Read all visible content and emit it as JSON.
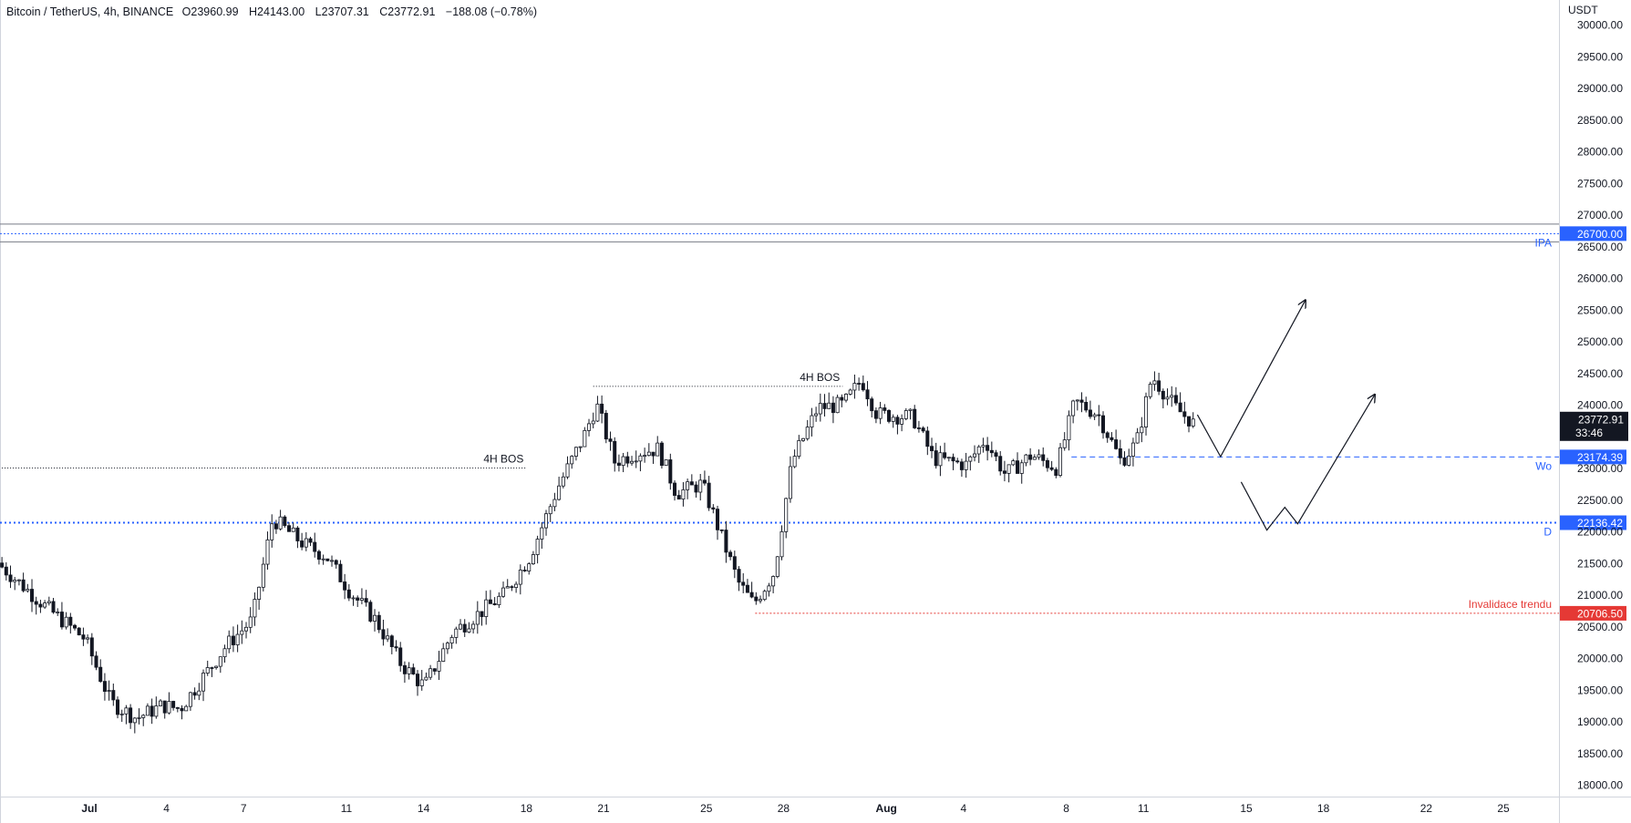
{
  "header": {
    "symbol": "Bitcoin / TetherUS, 4h, BINANCE",
    "open": "O23960.99",
    "high": "H24143.00",
    "low": "L23707.31",
    "close": "C23772.91",
    "change": "−188.08 (−0.78%)"
  },
  "price_axis": {
    "unit": "USDT",
    "ticks": [
      "30000.00",
      "29500.00",
      "29000.00",
      "28500.00",
      "28000.00",
      "27500.00",
      "27000.00",
      "26500.00",
      "26000.00",
      "25500.00",
      "25000.00",
      "24500.00",
      "24000.00",
      "23500.00",
      "23000.00",
      "22500.00",
      "22000.00",
      "21500.00",
      "21000.00",
      "20500.00",
      "20000.00",
      "19500.00",
      "19000.00",
      "18500.00",
      "18000.00"
    ],
    "current_price": "23772.91",
    "countdown": "33:46"
  },
  "time_axis": {
    "ticks": [
      {
        "label": "Jul",
        "bold": true,
        "day": 0
      },
      {
        "label": "4",
        "bold": false,
        "day": 3
      },
      {
        "label": "7",
        "bold": false,
        "day": 6
      },
      {
        "label": "11",
        "bold": false,
        "day": 10
      },
      {
        "label": "14",
        "bold": false,
        "day": 13
      },
      {
        "label": "18",
        "bold": false,
        "day": 17
      },
      {
        "label": "21",
        "bold": false,
        "day": 20
      },
      {
        "label": "25",
        "bold": false,
        "day": 24
      },
      {
        "label": "28",
        "bold": false,
        "day": 27
      },
      {
        "label": "Aug",
        "bold": true,
        "day": 31
      },
      {
        "label": "4",
        "bold": false,
        "day": 34
      },
      {
        "label": "8",
        "bold": false,
        "day": 38
      },
      {
        "label": "11",
        "bold": false,
        "day": 41
      },
      {
        "label": "15",
        "bold": false,
        "day": 45
      },
      {
        "label": "18",
        "bold": false,
        "day": 48
      },
      {
        "label": "22",
        "bold": false,
        "day": 52
      },
      {
        "label": "25",
        "bold": false,
        "day": 55
      }
    ]
  },
  "levels": [
    {
      "label": "IPA",
      "price": 26700.0,
      "price_text": "26700.00",
      "color": "#2962ff",
      "style": "dotted"
    },
    {
      "label": "Wo",
      "price": 23174.39,
      "price_text": "23174.39",
      "color": "#2962ff",
      "style": "dashed"
    },
    {
      "label": "D",
      "price": 22136.42,
      "price_text": "22136.42",
      "color": "#2962ff",
      "style": "dotted-bold"
    },
    {
      "label": "Invalidace trendu",
      "price": 20706.5,
      "price_text": "20706.50",
      "color": "#e53935",
      "style": "dotted"
    }
  ],
  "range_lines": {
    "upper": 26850,
    "lower": 26570
  },
  "annotations": [
    {
      "text": "4H BOS",
      "price": 23000,
      "from_day": -3.4,
      "to_day": 17.0
    },
    {
      "text": "4H BOS",
      "price": 24290,
      "from_day": 19.6,
      "to_day": 29.3
    }
  ],
  "projection_paths": [
    [
      [
        43.1,
        23840
      ],
      [
        44.0,
        23180
      ],
      [
        47.3,
        25650
      ]
    ],
    [
      [
        44.8,
        22780
      ],
      [
        45.8,
        22020
      ],
      [
        46.5,
        22380
      ],
      [
        47.0,
        22120
      ],
      [
        50.0,
        24160
      ]
    ]
  ],
  "colors": {
    "candle": "#131722",
    "level_blue": "#2962ff",
    "level_red": "#e53935",
    "price_box": "#131722",
    "range_line": "#787b86"
  },
  "chart_data": {
    "type": "candlestick",
    "title": "Bitcoin / TetherUS, 4h, BINANCE",
    "ylabel": "USDT",
    "ylim": [
      18000,
      30200
    ],
    "x_unit": "day offset from Jul 1",
    "anchors": [
      {
        "day": -3.4,
        "price": 21500
      },
      {
        "day": -1.5,
        "price": 20800
      },
      {
        "day": 0.0,
        "price": 20300
      },
      {
        "day": 1.0,
        "price": 19300
      },
      {
        "day": 2.0,
        "price": 19050
      },
      {
        "day": 3.0,
        "price": 19250
      },
      {
        "day": 3.7,
        "price": 19200
      },
      {
        "day": 5.5,
        "price": 20200
      },
      {
        "day": 6.5,
        "price": 20600
      },
      {
        "day": 7.3,
        "price": 22200
      },
      {
        "day": 8.5,
        "price": 21800
      },
      {
        "day": 9.4,
        "price": 21600
      },
      {
        "day": 10.3,
        "price": 21050
      },
      {
        "day": 11.3,
        "price": 20600
      },
      {
        "day": 12.3,
        "price": 19900
      },
      {
        "day": 13.2,
        "price": 19550
      },
      {
        "day": 14.3,
        "price": 20400
      },
      {
        "day": 15.3,
        "price": 20700
      },
      {
        "day": 16.3,
        "price": 21000
      },
      {
        "day": 17.3,
        "price": 21600
      },
      {
        "day": 18.4,
        "price": 22700
      },
      {
        "day": 19.4,
        "price": 23500
      },
      {
        "day": 19.9,
        "price": 24000
      },
      {
        "day": 20.6,
        "price": 23100
      },
      {
        "day": 21.5,
        "price": 23250
      },
      {
        "day": 22.3,
        "price": 23300
      },
      {
        "day": 23.0,
        "price": 22600
      },
      {
        "day": 24.0,
        "price": 22750
      },
      {
        "day": 24.5,
        "price": 22200
      },
      {
        "day": 25.4,
        "price": 21200
      },
      {
        "day": 26.0,
        "price": 20850
      },
      {
        "day": 26.8,
        "price": 21350
      },
      {
        "day": 27.5,
        "price": 23100
      },
      {
        "day": 28.5,
        "price": 23950
      },
      {
        "day": 29.5,
        "price": 24000
      },
      {
        "day": 30.2,
        "price": 24400
      },
      {
        "day": 30.8,
        "price": 23850
      },
      {
        "day": 32.2,
        "price": 23800
      },
      {
        "day": 33.0,
        "price": 23150
      },
      {
        "day": 34.3,
        "price": 23050
      },
      {
        "day": 35.0,
        "price": 23450
      },
      {
        "day": 35.8,
        "price": 22900
      },
      {
        "day": 36.8,
        "price": 23200
      },
      {
        "day": 37.8,
        "price": 23000
      },
      {
        "day": 38.5,
        "price": 24050
      },
      {
        "day": 39.4,
        "price": 23850
      },
      {
        "day": 40.3,
        "price": 23100
      },
      {
        "day": 40.9,
        "price": 23400
      },
      {
        "day": 41.5,
        "price": 24450
      },
      {
        "day": 42.4,
        "price": 23960
      },
      {
        "day": 42.9,
        "price": 23772.91
      }
    ],
    "last_close": 23772.91
  }
}
